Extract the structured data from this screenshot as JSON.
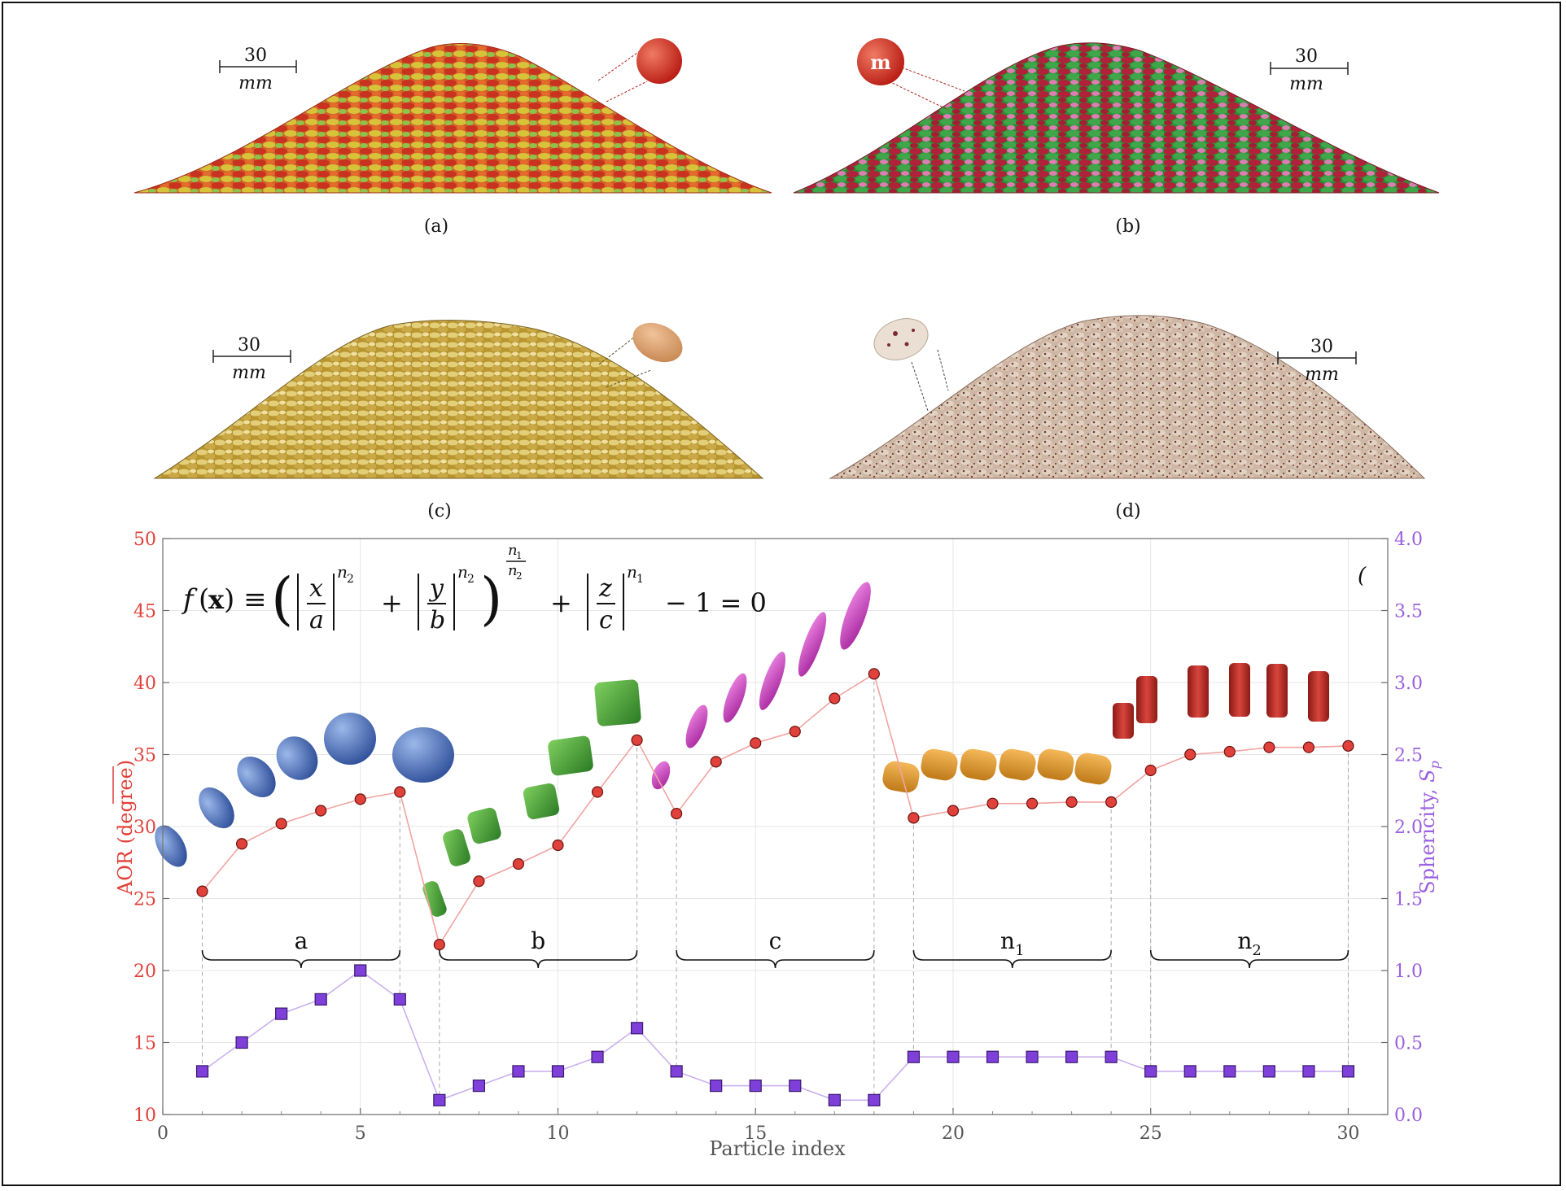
{
  "panels": [
    {
      "caption": "(a)",
      "scale_value": "30",
      "scale_unit": "mm"
    },
    {
      "caption": "(b)",
      "scale_value": "30",
      "scale_unit": "mm",
      "logo_text": "m"
    },
    {
      "caption": "(c)",
      "scale_value": "30",
      "scale_unit": "mm"
    },
    {
      "caption": "(d)",
      "scale_value": "30",
      "scale_unit": "mm"
    }
  ],
  "colors": {
    "aor": "#e0413a",
    "sphericity": "#7f3fd9",
    "group_a": "#4f7cc4",
    "group_b": "#4aa53a",
    "group_c": "#d949c9",
    "group_n1": "#e09a2e",
    "group_n2": "#c6302c"
  },
  "chart_data": {
    "type": "line",
    "xlabel": "Particle index",
    "ylabel_left": "AOR (degree)",
    "ylabel_right_text": "Sphericity, ",
    "ylabel_right_symbol": "S",
    "ylabel_right_subscript": "p",
    "xlim": [
      0,
      31
    ],
    "ylim_left": [
      10,
      50
    ],
    "ylim_right": [
      0.0,
      4.0
    ],
    "x_ticks": [
      "0",
      "5",
      "10",
      "15",
      "20",
      "25",
      "30"
    ],
    "y_left_ticks": [
      "10",
      "15",
      "20",
      "25",
      "30",
      "35",
      "40",
      "45",
      "50"
    ],
    "y_right_ticks": [
      "0.0",
      "0.5",
      "1.0",
      "1.5",
      "2.0",
      "2.5",
      "3.0",
      "3.5",
      "4.0"
    ],
    "grid": true,
    "equation_label": "superquadric surface f(x) = (|x/a|^n2 + |y/b|^n2)^(n1/n2) + |z/c|^n1 - 1 = 0",
    "corner_mark": "(",
    "x": [
      1,
      2,
      3,
      4,
      5,
      6,
      7,
      8,
      9,
      10,
      11,
      12,
      13,
      14,
      15,
      16,
      17,
      18,
      19,
      20,
      21,
      22,
      23,
      24,
      25,
      26,
      27,
      28,
      29,
      30
    ],
    "series": [
      {
        "name": "AOR",
        "axis": "left",
        "values": [
          25.5,
          28.8,
          30.2,
          31.1,
          31.9,
          32.4,
          21.8,
          26.2,
          27.4,
          28.7,
          32.4,
          36.0,
          30.9,
          34.5,
          35.8,
          36.6,
          38.9,
          40.6,
          30.6,
          31.1,
          31.6,
          31.6,
          31.7,
          31.7,
          33.9,
          35.0,
          35.2,
          35.5,
          35.5,
          35.6
        ]
      },
      {
        "name": "Sphericity",
        "axis": "right",
        "values": [
          0.3,
          0.5,
          0.7,
          0.8,
          1.0,
          0.8,
          0.1,
          0.2,
          0.3,
          0.3,
          0.4,
          0.6,
          0.3,
          0.2,
          0.2,
          0.2,
          0.1,
          0.1,
          0.4,
          0.4,
          0.4,
          0.4,
          0.4,
          0.4,
          0.3,
          0.3,
          0.3,
          0.3,
          0.3,
          0.3
        ]
      }
    ],
    "groups": [
      {
        "label": "a",
        "sub": "",
        "from": 1,
        "to": 6
      },
      {
        "label": "b",
        "sub": "",
        "from": 7,
        "to": 12
      },
      {
        "label": "c",
        "sub": "",
        "from": 13,
        "to": 18
      },
      {
        "label": "n",
        "sub": "1",
        "from": 19,
        "to": 24
      },
      {
        "label": "n",
        "sub": "2",
        "from": 25,
        "to": 30
      }
    ]
  }
}
